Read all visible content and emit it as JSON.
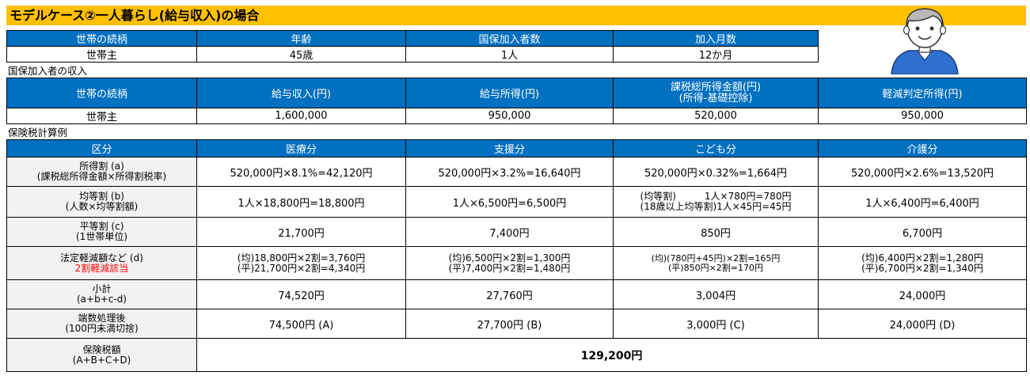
{
  "title": "モデルケース②一人暮らし(給与収入)の場合",
  "household": {
    "headers": [
      "世帯の続柄",
      "年齢",
      "国保加入者数",
      "加入月数"
    ],
    "values": [
      "世帯主",
      "45歳",
      "1人",
      "12か月"
    ]
  },
  "income": {
    "label": "国保加入者の収入",
    "headers": [
      "世帯の続柄",
      "給与収入(円)",
      "給与所得(円)",
      "課税総所得金額(円)",
      "(所得-基礎控除)",
      "軽減判定所得(円)"
    ],
    "values": [
      "世帯主",
      "1,600,000",
      "950,000",
      "520,000",
      "950,000"
    ]
  },
  "calc": {
    "label": "保険税計算例",
    "headers": [
      "区分",
      "医療分",
      "支援分",
      "こども分",
      "介護分"
    ],
    "rows": [
      {
        "label1": "所得割 (a)",
        "label2": "(課税総所得金額×所得割税率)",
        "cells": [
          [
            "520,000円×8.1%=42,120円"
          ],
          [
            "520,000円×3.2%=16,640円"
          ],
          [
            "520,000円×0.32%=1,664円"
          ],
          [
            "520,000円×2.6%=13,520円"
          ]
        ]
      },
      {
        "label1": "均等割 (b)",
        "label2": "(人数×均等割額)",
        "cells": [
          [
            "1人×18,800円=18,800円"
          ],
          [
            "1人×6,500円=6,500円"
          ],
          [
            "(均等割)　　　1人×780円=780円",
            "(18歳以上均等割)1人×45円=45円"
          ],
          [
            "1人×6,400円=6,400円"
          ]
        ]
      },
      {
        "label1": "平等割 (c)",
        "label2": "(1世帯単位)",
        "cells": [
          [
            "21,700円"
          ],
          [
            "7,400円"
          ],
          [
            "850円"
          ],
          [
            "6,700円"
          ]
        ]
      },
      {
        "label1": "法定軽減額など (d)",
        "label2": "2割軽減該当",
        "cells": [
          [
            "(均)18,800円×2割=3,760円",
            "(平)21,700円×2割=4,340円"
          ],
          [
            "(均)6,500円×2割=1,300円",
            "(平)7,400円×2割=1,480円"
          ],
          [
            "(均)(780円+45円)×2割=165円",
            "(平)850円×2割=170円"
          ],
          [
            "(均)6,400円×2割=1,280円",
            "(平)6,700円×2割=1,340円"
          ]
        ]
      },
      {
        "label1": "小計",
        "label2": "(a+b+c-d)",
        "cells": [
          [
            "74,520円"
          ],
          [
            "27,760円"
          ],
          [
            "3,004円"
          ],
          [
            "24,000円"
          ]
        ]
      },
      {
        "label1": "端数処理後",
        "label2": "(100円未満切捨)",
        "cells": [
          [
            "74,500円 (A)"
          ],
          [
            "27,700円 (B)"
          ],
          [
            "3,000円 (C)"
          ],
          [
            "24,000円 (D)"
          ]
        ]
      }
    ],
    "total": {
      "label1": "保険税額",
      "label2": "(A+B+C+D)",
      "value": "129,200円"
    }
  }
}
